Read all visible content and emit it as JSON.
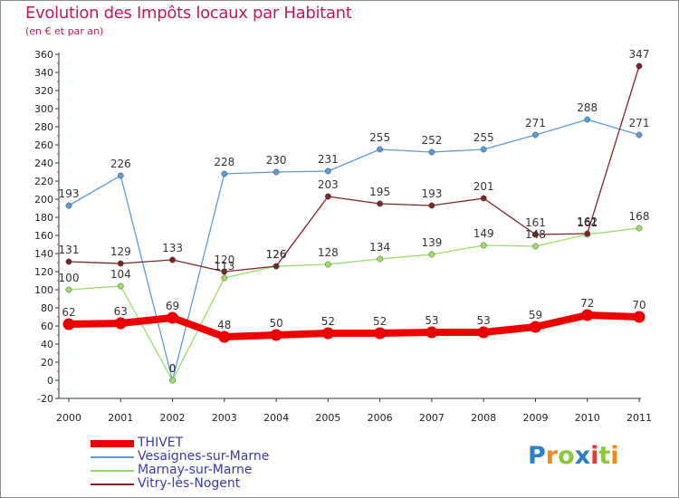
{
  "title": "Evolution des Impôts locaux par Habitant",
  "subtitle": "(en € et par an)",
  "logo": {
    "text": "Proxiti",
    "letters": [
      {
        "ch": "P",
        "color": "#2f7fc8"
      },
      {
        "ch": "r",
        "color": "#f08a1c"
      },
      {
        "ch": "o",
        "color": "#8cc63f"
      },
      {
        "ch": "x",
        "color": "#2f7fc8"
      },
      {
        "ch": "i",
        "color": "#e53935"
      },
      {
        "ch": "t",
        "color": "#8cc63f"
      },
      {
        "ch": "i",
        "color": "#f08a1c"
      }
    ]
  },
  "chart_data": {
    "type": "line",
    "x": [
      "2000",
      "2001",
      "2002",
      "2003",
      "2004",
      "2005",
      "2006",
      "2007",
      "2008",
      "2009",
      "2010",
      "2011"
    ],
    "ylim": [
      -20,
      360
    ],
    "yticks": [
      -20,
      0,
      20,
      40,
      60,
      80,
      100,
      120,
      140,
      160,
      180,
      200,
      220,
      240,
      260,
      280,
      300,
      320,
      340,
      360
    ],
    "grid": false,
    "legend_position": "bottom-left",
    "series": [
      {
        "name": "THIVET",
        "color": "#ee0000",
        "width": 8,
        "marker": 6.5,
        "values": [
          62,
          63,
          69,
          48,
          50,
          52,
          52,
          53,
          53,
          59,
          72,
          70
        ],
        "labels": [
          "62",
          "63",
          "69",
          "48",
          "50",
          "52",
          "52",
          "53",
          "53",
          "59",
          "72",
          "70"
        ]
      },
      {
        "name": "Vesaignes-sur-Marne",
        "color": "#5b9bd5",
        "width": 1.3,
        "marker": 3.2,
        "values": [
          193,
          226,
          0,
          228,
          230,
          231,
          255,
          252,
          255,
          271,
          288,
          271
        ],
        "labels": [
          "193",
          "226",
          "0",
          "228",
          "230",
          "231",
          "255",
          "252",
          "255",
          "271",
          "288",
          "271"
        ]
      },
      {
        "name": "Marnay-sur-Marne",
        "color": "#99dd66",
        "width": 1.3,
        "marker": 3.2,
        "values": [
          100,
          104,
          0,
          113,
          126,
          128,
          134,
          139,
          149,
          148,
          161,
          168
        ],
        "labels": [
          "100",
          "104",
          "0",
          "113",
          "126",
          "128",
          "134",
          "139",
          "149",
          "148",
          "161",
          "168"
        ]
      },
      {
        "name": "Vitry-lès-Nogent",
        "color": "#7a2424",
        "width": 1.3,
        "marker": 3.2,
        "values": [
          131,
          129,
          133,
          120,
          126,
          203,
          195,
          193,
          201,
          161,
          162,
          347
        ],
        "labels": [
          "131",
          "129",
          "133",
          "120",
          "126",
          "203",
          "195",
          "193",
          "201",
          "161",
          "162",
          "347"
        ]
      }
    ]
  }
}
